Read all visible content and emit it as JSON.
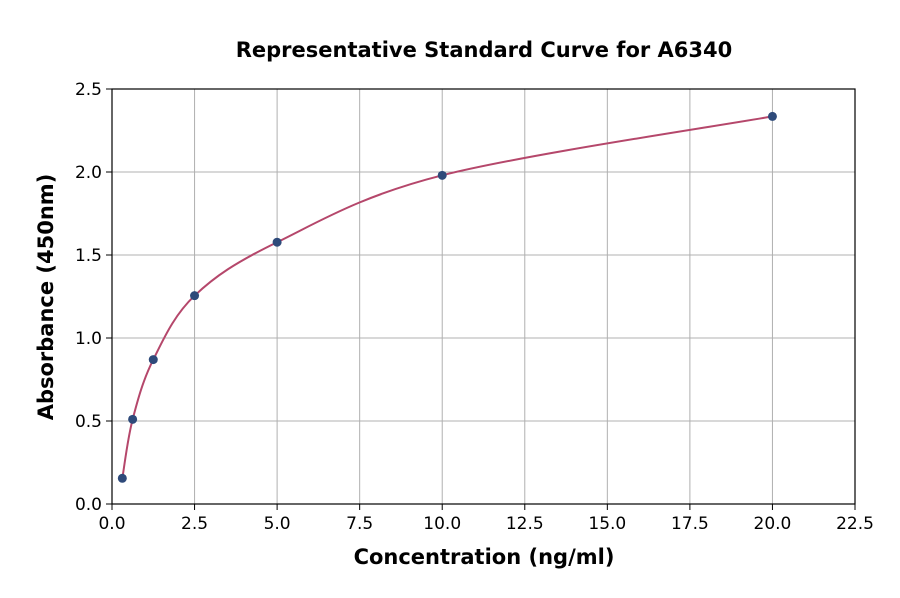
{
  "chart_data": {
    "type": "scatter",
    "title": "Representative Standard Curve for A6340",
    "xlabel": "Concentration (ng/ml)",
    "ylabel": "Absorbance (450nm)",
    "xlim": [
      0,
      22.5
    ],
    "ylim": [
      0,
      2.5
    ],
    "xticks": [
      "0.0",
      "2.5",
      "5.0",
      "7.5",
      "10.0",
      "12.5",
      "15.0",
      "17.5",
      "20.0",
      "22.5"
    ],
    "yticks": [
      "0.0",
      "0.5",
      "1.0",
      "1.5",
      "2.0",
      "2.5"
    ],
    "grid": true,
    "points": [
      {
        "x": 0.3125,
        "y": 0.155
      },
      {
        "x": 0.625,
        "y": 0.51
      },
      {
        "x": 1.25,
        "y": 0.87
      },
      {
        "x": 2.5,
        "y": 1.255
      },
      {
        "x": 5,
        "y": 1.577
      },
      {
        "x": 10,
        "y": 1.98
      },
      {
        "x": 20,
        "y": 2.335
      }
    ],
    "fit_curve": true,
    "colors": {
      "points": "#2e4a7a",
      "curve": "#b5476b",
      "grid": "#b0b0b0"
    }
  }
}
